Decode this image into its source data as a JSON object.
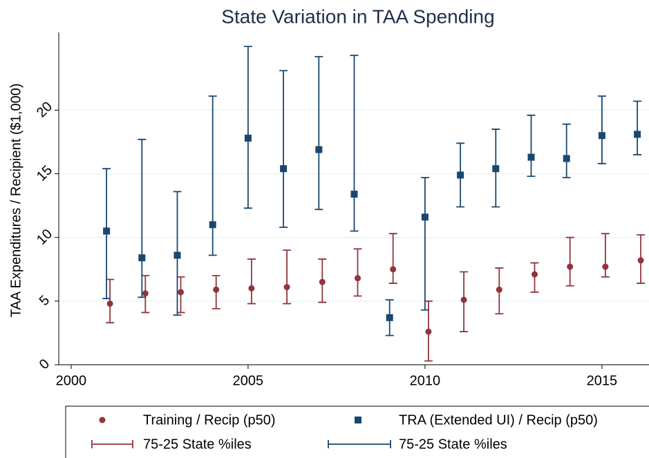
{
  "chart_data": {
    "type": "errorbar",
    "title": "State Variation in TAA Spending",
    "y_label": "TAA Expenditures / Recipient ($1,000)",
    "x": [
      2001,
      2002,
      2003,
      2004,
      2005,
      2006,
      2007,
      2008,
      2009,
      2010,
      2011,
      2012,
      2013,
      2014,
      2015,
      2016
    ],
    "xlim": [
      1999.65,
      2016.33
    ],
    "xticks": [
      2000,
      2005,
      2010,
      2015
    ],
    "ylim": [
      0,
      26.1
    ],
    "yticks": [
      0,
      5,
      10,
      15,
      20
    ],
    "grid": true,
    "series": [
      {
        "name": "Training / Recip (p50)",
        "range_name": "75-25 State %iles",
        "color": "#90353b",
        "marker": "circle",
        "values": [
          4.8,
          5.6,
          5.7,
          5.9,
          6.0,
          6.1,
          6.5,
          6.8,
          7.5,
          2.6,
          5.1,
          5.9,
          7.1,
          7.7,
          7.7,
          8.2
        ],
        "low": [
          3.3,
          4.1,
          4.1,
          4.4,
          4.8,
          4.8,
          4.9,
          5.4,
          6.4,
          0.3,
          2.6,
          4.0,
          5.7,
          6.2,
          6.9,
          6.4
        ],
        "high": [
          6.7,
          7.0,
          6.9,
          7.0,
          8.3,
          9.0,
          8.3,
          9.1,
          10.3,
          5.0,
          7.3,
          7.6,
          8.0,
          10.0,
          10.3,
          10.2
        ]
      },
      {
        "name": "TRA (Extended UI) / Recip (p50)",
        "range_name": "75-25 State %iles",
        "color": "#1a476f",
        "marker": "square",
        "values": [
          10.5,
          8.4,
          8.6,
          11.0,
          17.8,
          15.4,
          16.9,
          13.4,
          3.7,
          11.6,
          14.9,
          15.4,
          16.3,
          16.2,
          18.0,
          18.1
        ],
        "low": [
          5.2,
          5.3,
          3.9,
          8.6,
          12.3,
          10.8,
          12.2,
          10.5,
          2.3,
          4.3,
          12.4,
          12.4,
          14.8,
          14.7,
          15.8,
          16.5
        ],
        "high": [
          15.4,
          17.7,
          13.6,
          21.1,
          25.0,
          23.1,
          24.2,
          24.3,
          5.1,
          14.7,
          17.4,
          18.5,
          19.6,
          18.9,
          21.1,
          20.7
        ]
      }
    ]
  }
}
